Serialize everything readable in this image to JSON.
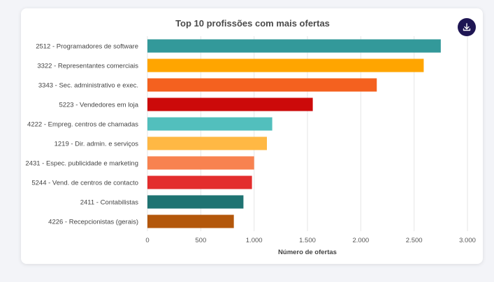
{
  "chart_data": {
    "type": "bar",
    "orientation": "horizontal",
    "title": "Top 10 profissões com mais ofertas",
    "xlabel": "Número de ofertas",
    "ylabel": "",
    "xlim": [
      0,
      3000
    ],
    "x_ticks": [
      "0",
      "500",
      "1.000",
      "1.500",
      "2.000",
      "2.500",
      "3.000"
    ],
    "x_tick_values": [
      0,
      500,
      1000,
      1500,
      2000,
      2500,
      3000
    ],
    "grid": "vertical",
    "categories": [
      "2512 - Programadores de software",
      "3322 - Representantes comerciais",
      "3343 - Sec. administrativo e exec.",
      "5223 - Vendedores em loja",
      "4222 - Empreg. centros de chamadas",
      "1219 - Dir. admin. e serviços",
      "2431 - Espec. publicidade e marketing",
      "5244 - Vend. de centros de contacto",
      "2411 - Contabilistas",
      "4226 - Recepcionistas (gerais)"
    ],
    "values": [
      2750,
      2590,
      2150,
      1550,
      1170,
      1120,
      1000,
      980,
      900,
      810
    ],
    "colors": [
      "#33999a",
      "#ffa500",
      "#f4611f",
      "#cc0a0a",
      "#52bfbd",
      "#ffb844",
      "#f88250",
      "#e32d2d",
      "#1f7372",
      "#b3570b"
    ]
  },
  "toolbar": {
    "download_icon": "download-icon"
  }
}
